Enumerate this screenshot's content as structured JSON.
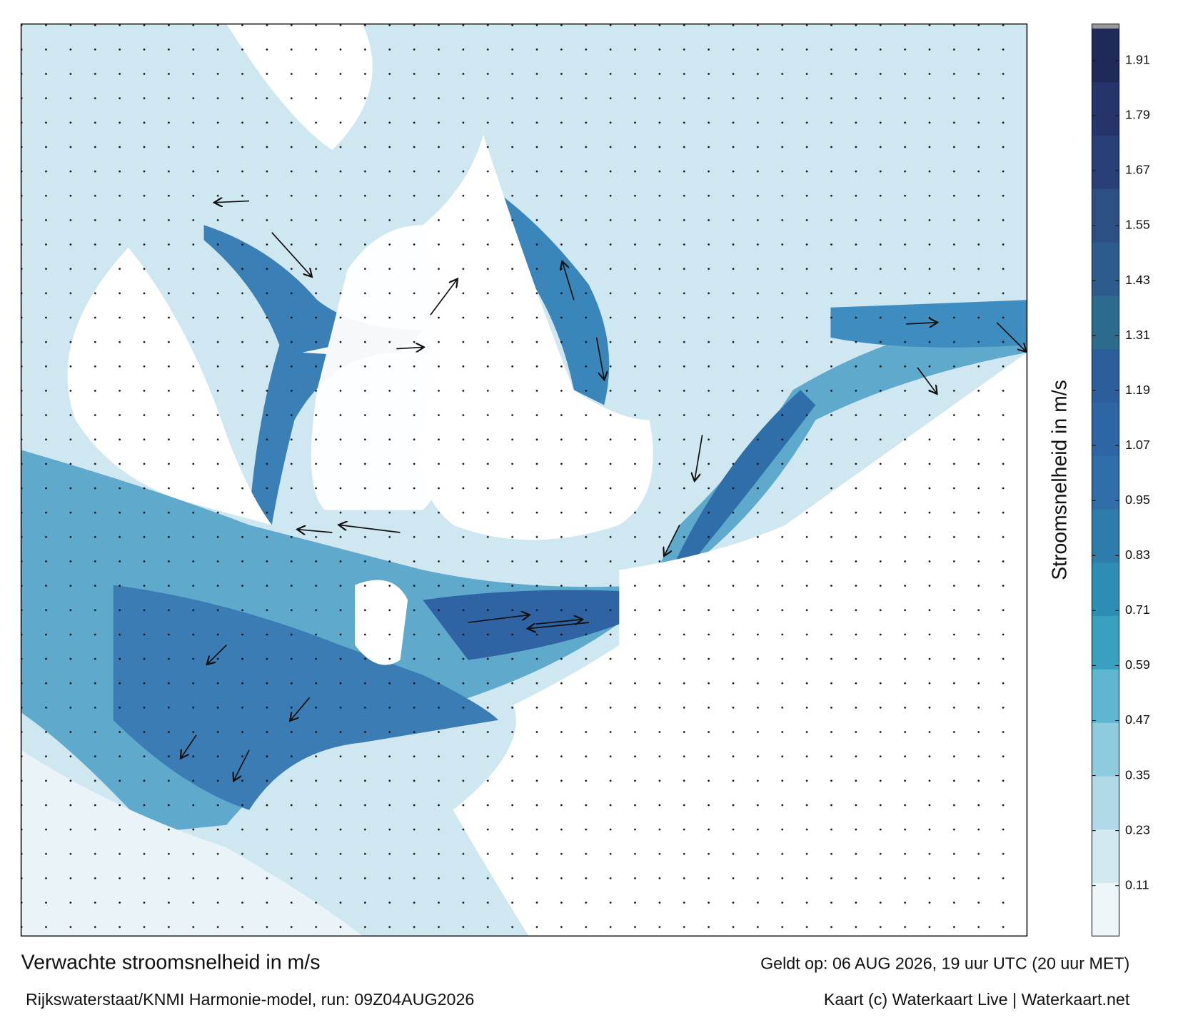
{
  "title": "Verwachte stroomsnelheid in m/s",
  "subtitle": "Rijkswaterstaat/KNMI Harmonie-model, run: 09Z04AUG2026",
  "valid": "Geldt op: 06 AUG 2026, 19 uur UTC (20 uur MET)",
  "credit": "Kaart (c) Waterkaart Live | Waterkaart.net",
  "colorbar": {
    "label": "Stroomsnelheid in m/s",
    "lim": [
      0,
      1.98
    ],
    "ticks": [
      0.11,
      0.23,
      0.35,
      0.47,
      0.59,
      0.71,
      0.83,
      0.95,
      1.07,
      1.19,
      1.31,
      1.43,
      1.55,
      1.67,
      1.79,
      1.91
    ],
    "colors": [
      "#eef6f9",
      "#d3e9f1",
      "#b2d9e7",
      "#8ecbde",
      "#5fb6d1",
      "#3aa0c2",
      "#2d8db4",
      "#2e7cab",
      "#2f6ea8",
      "#2e65a4",
      "#2d5e9c",
      "#2c6b8c",
      "#2d5b8e",
      "#2c4f84",
      "#283f78",
      "#25346a",
      "#202a58"
    ]
  }
}
